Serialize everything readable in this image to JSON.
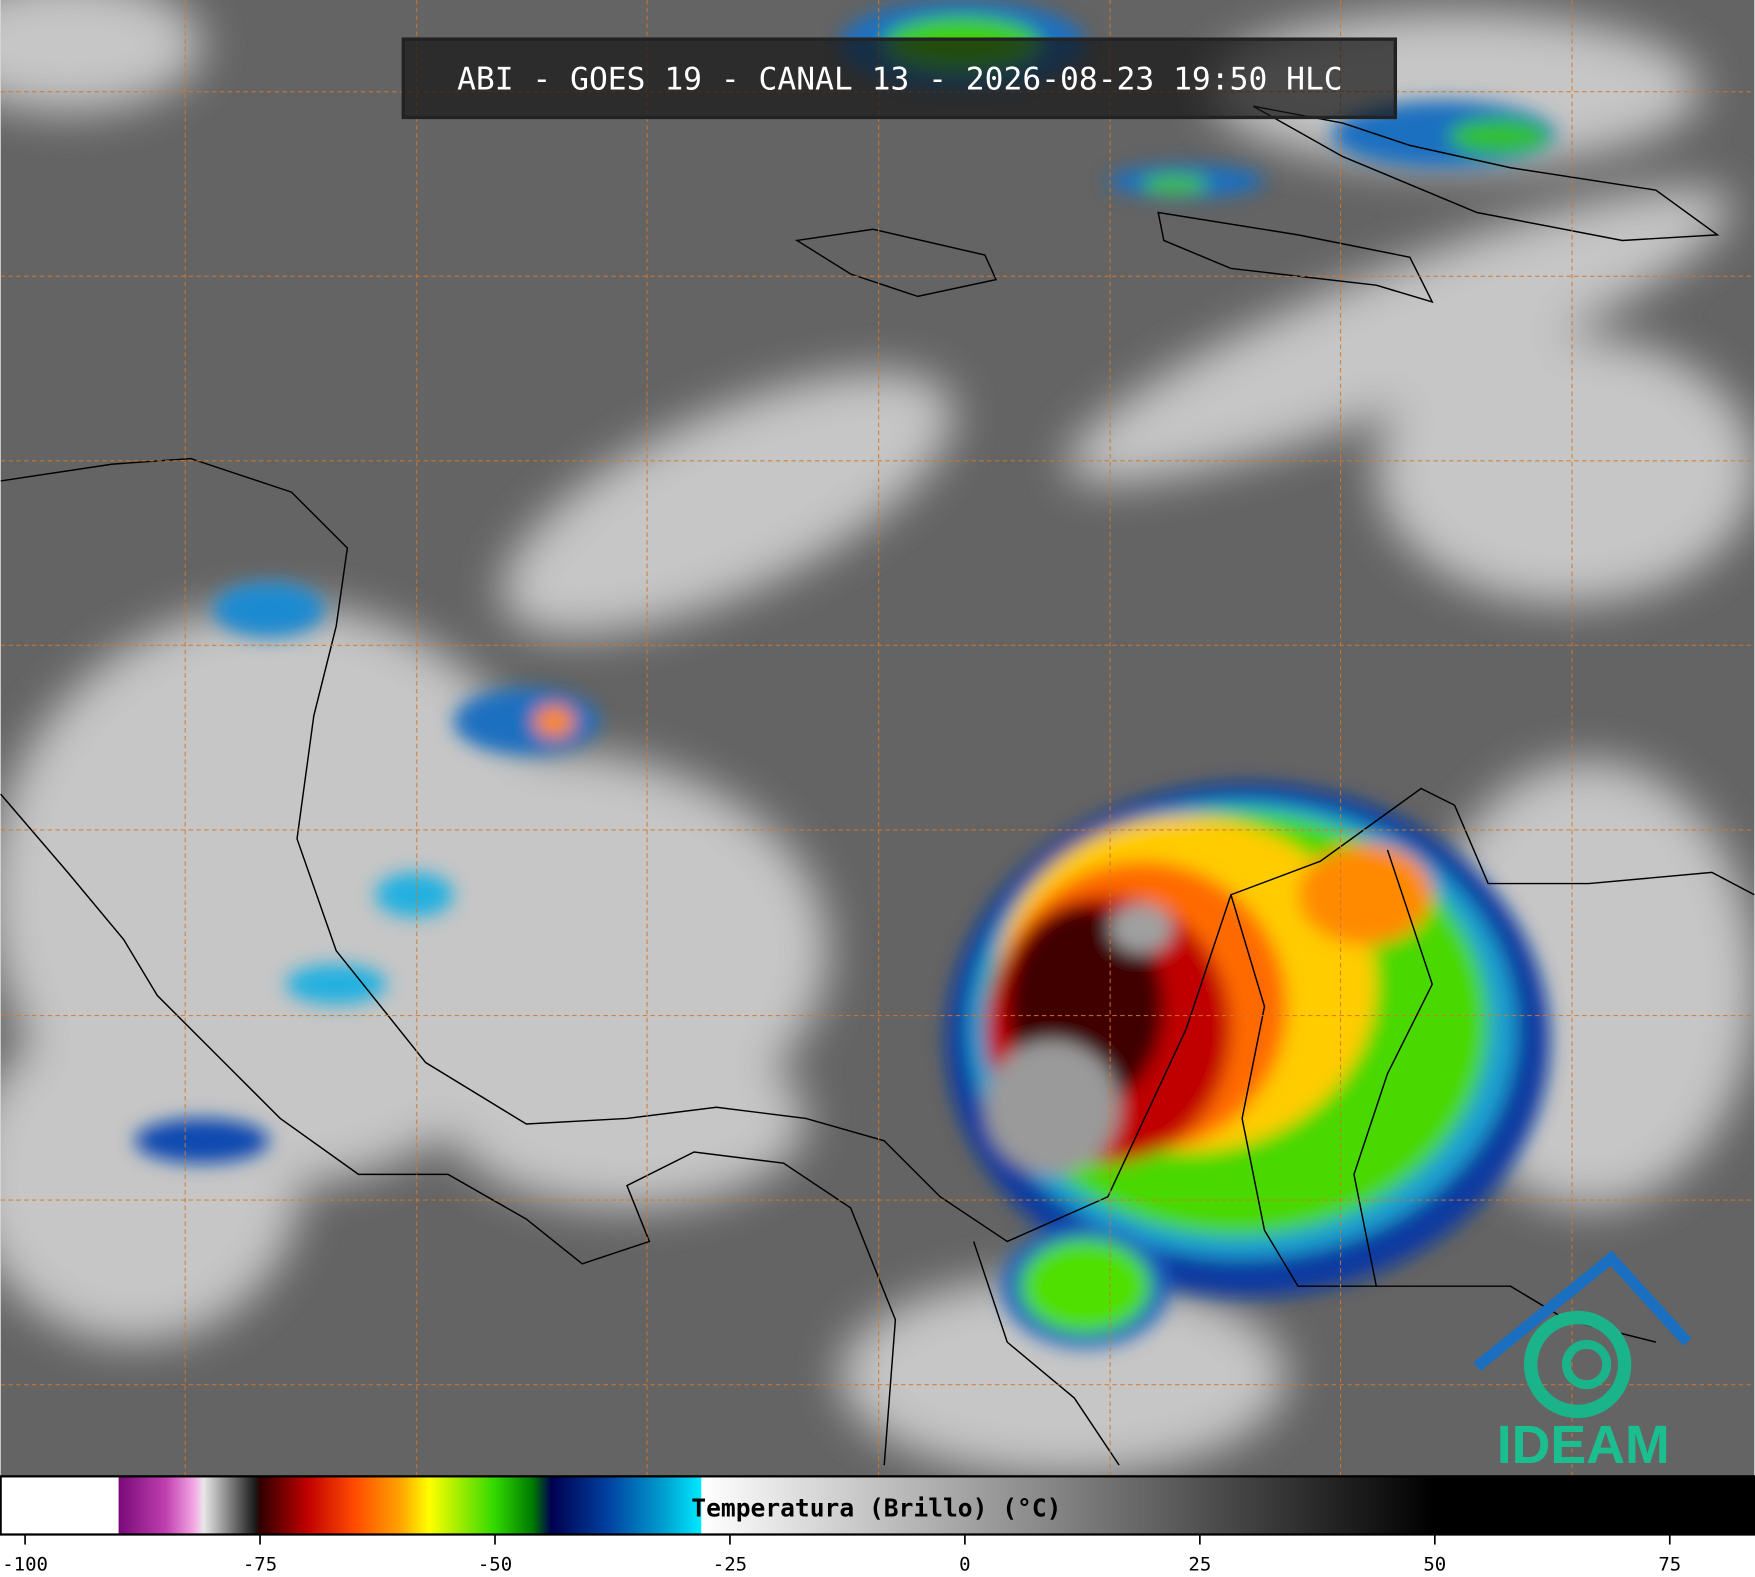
{
  "map_title": "ABI - GOES 19 - CANAL 13 - 2026-08-23 19:50 HLC",
  "logo": "IDEAM",
  "colorbar": {
    "label": "Temperatura (Brillo) (°C)",
    "range": [
      -102.6,
      84
    ],
    "ticks": [
      -100,
      -75,
      -50,
      -25,
      0,
      25,
      50,
      75
    ],
    "stops": [
      {
        "value": -90.1,
        "color": "#ffffff"
      },
      {
        "value": -90,
        "color": "#7a0a7a"
      },
      {
        "value": -85,
        "color": "#c040b0"
      },
      {
        "value": -82,
        "color": "#f4a8e4"
      },
      {
        "value": -81,
        "color": "#e8e8e8"
      },
      {
        "value": -75.5,
        "color": "#1a1a1a"
      },
      {
        "value": -75,
        "color": "#300000"
      },
      {
        "value": -70,
        "color": "#c00000"
      },
      {
        "value": -65,
        "color": "#ff4a00"
      },
      {
        "value": -60,
        "color": "#ffa500"
      },
      {
        "value": -57,
        "color": "#ffff00"
      },
      {
        "value": -50,
        "color": "#30d800"
      },
      {
        "value": -46,
        "color": "#007a00"
      },
      {
        "value": -44,
        "color": "#000050"
      },
      {
        "value": -38,
        "color": "#0040a0"
      },
      {
        "value": -32,
        "color": "#00a0d0"
      },
      {
        "value": -28.1,
        "color": "#00e8ff"
      },
      {
        "value": -28,
        "color": "#ffffff"
      },
      {
        "value": 50,
        "color": "#000000"
      }
    ]
  }
}
